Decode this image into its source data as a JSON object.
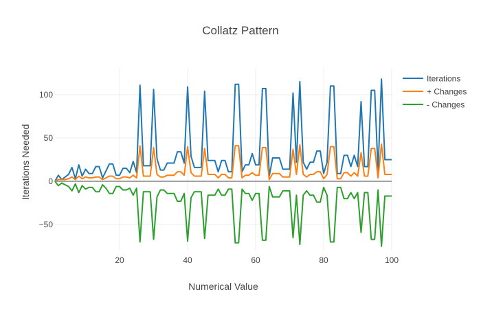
{
  "chart_data": {
    "type": "line",
    "title": "Collatz Pattern",
    "xlabel": "Numerical Value",
    "ylabel": "Iterations Needed",
    "xlim": [
      1,
      100
    ],
    "ylim": [
      -80,
      130
    ],
    "grid": true,
    "legend_position": "top-right",
    "x_ticks": [
      20,
      40,
      60,
      80,
      100
    ],
    "x_tick_labels": [
      "20",
      "40",
      "60",
      "80",
      "100"
    ],
    "y_ticks": [
      -50,
      0,
      50,
      100
    ],
    "y_tick_labels": [
      "−50",
      "0",
      "50",
      "100"
    ],
    "x": [
      1,
      2,
      3,
      4,
      5,
      6,
      7,
      8,
      9,
      10,
      11,
      12,
      13,
      14,
      15,
      16,
      17,
      18,
      19,
      20,
      21,
      22,
      23,
      24,
      25,
      26,
      27,
      28,
      29,
      30,
      31,
      32,
      33,
      34,
      35,
      36,
      37,
      38,
      39,
      40,
      41,
      42,
      43,
      44,
      45,
      46,
      47,
      48,
      49,
      50,
      51,
      52,
      53,
      54,
      55,
      56,
      57,
      58,
      59,
      60,
      61,
      62,
      63,
      64,
      65,
      66,
      67,
      68,
      69,
      70,
      71,
      72,
      73,
      74,
      75,
      76,
      77,
      78,
      79,
      80,
      81,
      82,
      83,
      84,
      85,
      86,
      87,
      88,
      89,
      90,
      91,
      92,
      93,
      94,
      95,
      96,
      97,
      98,
      99,
      100
    ],
    "series": [
      {
        "name": "Iterations",
        "color": "#1f77b4",
        "values": [
          0,
          7,
          2,
          5,
          8,
          16,
          3,
          19,
          6,
          14,
          9,
          9,
          17,
          17,
          4,
          12,
          20,
          20,
          7,
          7,
          15,
          15,
          10,
          23,
          10,
          111,
          18,
          18,
          18,
          106,
          26,
          13,
          13,
          21,
          21,
          21,
          34,
          34,
          21,
          109,
          29,
          16,
          16,
          16,
          104,
          24,
          24,
          24,
          11,
          24,
          24,
          11,
          11,
          112,
          112,
          11,
          19,
          19,
          32,
          19,
          19,
          107,
          107,
          6,
          27,
          27,
          27,
          14,
          14,
          14,
          102,
          22,
          115,
          22,
          14,
          22,
          22,
          35,
          35,
          9,
          22,
          110,
          110,
          9,
          9,
          30,
          30,
          17,
          30,
          17,
          92,
          17,
          17,
          105,
          105,
          12,
          118,
          25,
          25,
          25
        ]
      },
      {
        "name": "+ Changes",
        "color": "#ff7f0e",
        "values": [
          0,
          2,
          2,
          2,
          3,
          5,
          2,
          6,
          3,
          5,
          4,
          4,
          5,
          5,
          2,
          4,
          6,
          6,
          3,
          3,
          5,
          5,
          4,
          7,
          4,
          41,
          6,
          6,
          6,
          39,
          8,
          5,
          5,
          7,
          7,
          7,
          11,
          11,
          7,
          40,
          10,
          6,
          6,
          6,
          38,
          8,
          8,
          8,
          4,
          8,
          8,
          4,
          4,
          41,
          41,
          4,
          7,
          7,
          10,
          7,
          7,
          39,
          39,
          2,
          9,
          9,
          9,
          5,
          5,
          5,
          37,
          8,
          42,
          8,
          5,
          8,
          8,
          11,
          11,
          3,
          8,
          40,
          40,
          3,
          3,
          10,
          10,
          6,
          10,
          6,
          33,
          6,
          6,
          38,
          38,
          4,
          43,
          8,
          8,
          8
        ]
      },
      {
        "name": "- Changes",
        "color": "#2ca02c",
        "values": [
          0,
          -5,
          -2,
          -4,
          -6,
          -11,
          -3,
          -13,
          -5,
          -9,
          -7,
          -7,
          -12,
          -12,
          -4,
          -8,
          -14,
          -14,
          -6,
          -6,
          -10,
          -10,
          -8,
          -16,
          -8,
          -70,
          -12,
          -12,
          -12,
          -67,
          -18,
          -10,
          -10,
          -14,
          -14,
          -14,
          -23,
          -23,
          -14,
          -69,
          -19,
          -12,
          -12,
          -12,
          -66,
          -16,
          -16,
          -16,
          -9,
          -16,
          -16,
          -9,
          -9,
          -71,
          -71,
          -9,
          -14,
          -14,
          -22,
          -14,
          -14,
          -68,
          -68,
          -6,
          -18,
          -18,
          -18,
          -11,
          -11,
          -11,
          -65,
          -16,
          -73,
          -16,
          -11,
          -16,
          -16,
          -24,
          -24,
          -7,
          -16,
          -70,
          -70,
          -7,
          -7,
          -20,
          -20,
          -13,
          -20,
          -13,
          -59,
          -13,
          -13,
          -67,
          -67,
          -10,
          -75,
          -17,
          -17,
          -17
        ]
      }
    ]
  }
}
